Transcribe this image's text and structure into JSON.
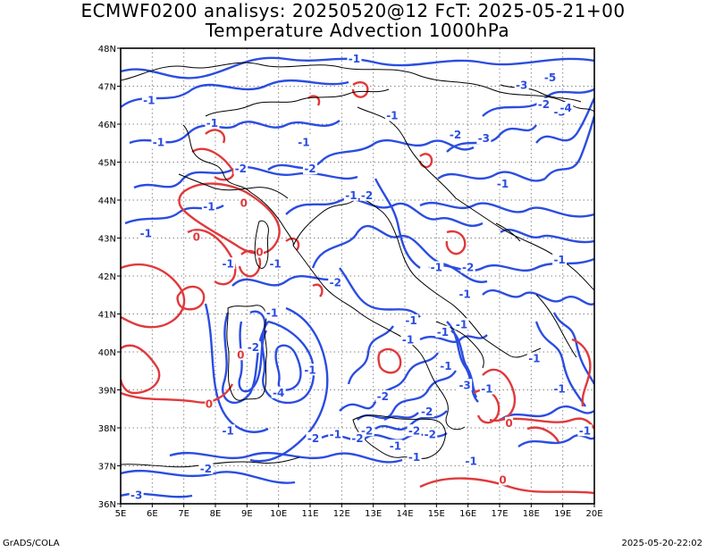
{
  "header": {
    "title_line1": "ECMWF0200 analisys: 20250520@12 FcT: 2025-05-21+00",
    "title_line2": "Temperature Advection 1000hPa"
  },
  "axes": {
    "lon_ticks": [
      "5E",
      "6E",
      "7E",
      "8E",
      "9E",
      "10E",
      "11E",
      "12E",
      "13E",
      "14E",
      "15E",
      "16E",
      "17E",
      "18E",
      "19E",
      "20E"
    ],
    "lat_ticks": [
      "36N",
      "37N",
      "38N",
      "39N",
      "40N",
      "41N",
      "42N",
      "43N",
      "44N",
      "45N",
      "46N",
      "47N",
      "48N"
    ],
    "lon_range": [
      5,
      20
    ],
    "lat_range": [
      36,
      48
    ],
    "grid": "dotted"
  },
  "colors": {
    "negative_contour": "#2b4de0",
    "positive_contour": "#e0393c",
    "coastline": "#000000",
    "gridline": "#888888"
  },
  "contour_labels": [
    {
      "text": "-1",
      "lon": 5.9,
      "lat": 46.6,
      "sign": "neg"
    },
    {
      "text": "-1",
      "lon": 7.9,
      "lat": 46.0,
      "sign": "neg"
    },
    {
      "text": "-1",
      "lon": 6.2,
      "lat": 45.5,
      "sign": "neg"
    },
    {
      "text": "-1",
      "lon": 12.4,
      "lat": 47.7,
      "sign": "neg"
    },
    {
      "text": "-1",
      "lon": 10.8,
      "lat": 45.5,
      "sign": "neg"
    },
    {
      "text": "-1",
      "lon": 13.6,
      "lat": 46.2,
      "sign": "neg"
    },
    {
      "text": "-2",
      "lon": 8.8,
      "lat": 44.8,
      "sign": "neg"
    },
    {
      "text": "-2",
      "lon": 11.0,
      "lat": 44.8,
      "sign": "neg"
    },
    {
      "text": "-2",
      "lon": 12.8,
      "lat": 44.1,
      "sign": "neg"
    },
    {
      "text": "-1",
      "lon": 12.3,
      "lat": 44.1,
      "sign": "neg"
    },
    {
      "text": "-1",
      "lon": 7.8,
      "lat": 43.8,
      "sign": "neg"
    },
    {
      "text": "-1",
      "lon": 5.8,
      "lat": 43.1,
      "sign": "neg"
    },
    {
      "text": "-3",
      "lon": 17.7,
      "lat": 47.0,
      "sign": "neg"
    },
    {
      "text": "-2",
      "lon": 18.4,
      "lat": 46.5,
      "sign": "neg"
    },
    {
      "text": "-3",
      "lon": 18.9,
      "lat": 46.3,
      "sign": "neg"
    },
    {
      "text": "-5",
      "lon": 18.6,
      "lat": 47.2,
      "sign": "neg"
    },
    {
      "text": "-4",
      "lon": 19.1,
      "lat": 46.4,
      "sign": "neg"
    },
    {
      "text": "-2",
      "lon": 15.6,
      "lat": 45.7,
      "sign": "neg"
    },
    {
      "text": "-3",
      "lon": 16.5,
      "lat": 45.6,
      "sign": "neg"
    },
    {
      "text": "-1",
      "lon": 17.1,
      "lat": 44.4,
      "sign": "neg"
    },
    {
      "text": "-1",
      "lon": 18.9,
      "lat": 42.4,
      "sign": "neg"
    },
    {
      "text": "-2",
      "lon": 16.0,
      "lat": 42.2,
      "sign": "neg"
    },
    {
      "text": "-1",
      "lon": 15.0,
      "lat": 42.2,
      "sign": "neg"
    },
    {
      "text": "-1",
      "lon": 8.4,
      "lat": 42.3,
      "sign": "neg"
    },
    {
      "text": "-1",
      "lon": 9.9,
      "lat": 42.3,
      "sign": "neg"
    },
    {
      "text": "-2",
      "lon": 11.8,
      "lat": 41.8,
      "sign": "neg"
    },
    {
      "text": "-1",
      "lon": 15.9,
      "lat": 41.5,
      "sign": "neg"
    },
    {
      "text": "-1",
      "lon": 9.8,
      "lat": 41.0,
      "sign": "neg"
    },
    {
      "text": "-1",
      "lon": 14.2,
      "lat": 40.8,
      "sign": "neg"
    },
    {
      "text": "-1",
      "lon": 14.1,
      "lat": 40.3,
      "sign": "neg"
    },
    {
      "text": "-1",
      "lon": 15.8,
      "lat": 40.7,
      "sign": "neg"
    },
    {
      "text": "-2",
      "lon": 9.2,
      "lat": 40.1,
      "sign": "neg"
    },
    {
      "text": "-1",
      "lon": 15.3,
      "lat": 39.6,
      "sign": "neg"
    },
    {
      "text": "-1",
      "lon": 15.2,
      "lat": 40.5,
      "sign": "neg"
    },
    {
      "text": "-1",
      "lon": 11.0,
      "lat": 39.5,
      "sign": "neg"
    },
    {
      "text": "-3",
      "lon": 15.9,
      "lat": 39.1,
      "sign": "neg"
    },
    {
      "text": "-1",
      "lon": 16.6,
      "lat": 39.0,
      "sign": "neg"
    },
    {
      "text": "-1",
      "lon": 18.1,
      "lat": 39.8,
      "sign": "neg"
    },
    {
      "text": "-1",
      "lon": 18.9,
      "lat": 39.0,
      "sign": "neg"
    },
    {
      "text": "-4",
      "lon": 10.0,
      "lat": 38.9,
      "sign": "neg"
    },
    {
      "text": "-2",
      "lon": 13.3,
      "lat": 38.8,
      "sign": "neg"
    },
    {
      "text": "-2",
      "lon": 14.7,
      "lat": 38.4,
      "sign": "neg"
    },
    {
      "text": "-2",
      "lon": 12.8,
      "lat": 37.9,
      "sign": "neg"
    },
    {
      "text": "-2",
      "lon": 14.3,
      "lat": 37.9,
      "sign": "neg"
    },
    {
      "text": "-1",
      "lon": 8.4,
      "lat": 37.9,
      "sign": "neg"
    },
    {
      "text": "-2",
      "lon": 11.1,
      "lat": 37.7,
      "sign": "neg"
    },
    {
      "text": "-1",
      "lon": 11.8,
      "lat": 37.8,
      "sign": "neg"
    },
    {
      "text": "-2",
      "lon": 12.5,
      "lat": 37.7,
      "sign": "neg"
    },
    {
      "text": "-1",
      "lon": 13.7,
      "lat": 37.5,
      "sign": "neg"
    },
    {
      "text": "-2",
      "lon": 14.8,
      "lat": 37.8,
      "sign": "neg"
    },
    {
      "text": "-1",
      "lon": 14.3,
      "lat": 37.2,
      "sign": "neg"
    },
    {
      "text": "-1",
      "lon": 16.1,
      "lat": 37.1,
      "sign": "neg"
    },
    {
      "text": "-1",
      "lon": 19.7,
      "lat": 37.9,
      "sign": "neg"
    },
    {
      "text": "-2",
      "lon": 7.7,
      "lat": 36.9,
      "sign": "neg"
    },
    {
      "text": "-3",
      "lon": 5.5,
      "lat": 36.2,
      "sign": "neg"
    },
    {
      "text": "0",
      "lon": 8.9,
      "lat": 43.9,
      "sign": "pos"
    },
    {
      "text": "0",
      "lon": 7.4,
      "lat": 43.0,
      "sign": "pos"
    },
    {
      "text": "0",
      "lon": 9.4,
      "lat": 42.6,
      "sign": "pos"
    },
    {
      "text": "0",
      "lon": 8.8,
      "lat": 39.9,
      "sign": "pos"
    },
    {
      "text": "0",
      "lon": 7.8,
      "lat": 38.6,
      "sign": "pos"
    },
    {
      "text": "0",
      "lon": 17.3,
      "lat": 38.1,
      "sign": "pos"
    },
    {
      "text": "0",
      "lon": 17.1,
      "lat": 36.6,
      "sign": "pos"
    }
  ],
  "footer": {
    "credit": "GrADS/COLA",
    "timestamp": "2025-05-20-22:02"
  }
}
